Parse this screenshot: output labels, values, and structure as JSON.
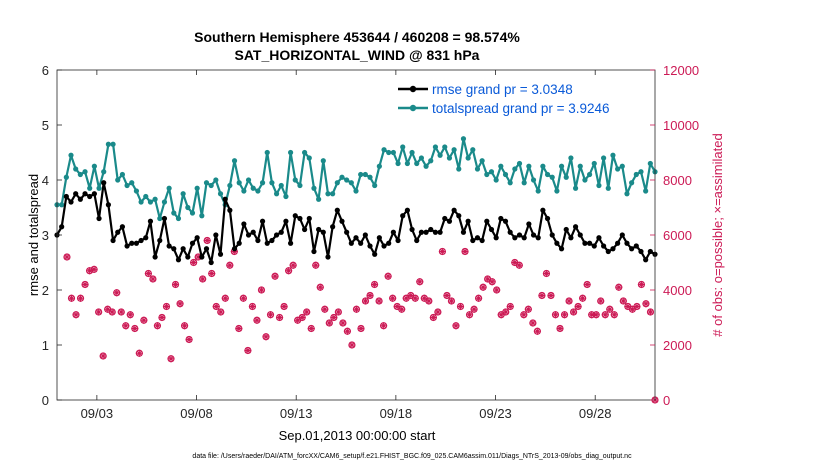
{
  "chart_data": {
    "type": "line",
    "title_line1": "Southern Hemisphere 453644 / 460208 = 98.574%",
    "title_line2": "SAT_HORIZONTAL_WIND @ 831 hPa",
    "xlabel": "Sep.01,2013 00:00:00 start",
    "ylabel_left": "rmse and totalspread",
    "ylabel_right": "# of obs: o=possible; ×=assimilated",
    "footer": "data file: /Users/raeder/DAI/ATM_forcXX/CAM6_setup/f.e21.FHIST_BGC.f09_025.CAM6assim.011/Diags_NTrS_2013-09/obs_diag_output.nc",
    "x_range_days": [
      0.5,
      30.5
    ],
    "ylim_left": [
      0,
      6
    ],
    "ylim_right": [
      0,
      12000
    ],
    "left_ticks": [
      0,
      1,
      2,
      3,
      4,
      5,
      6
    ],
    "left_tick_labels": [
      "0",
      "1",
      "2",
      "3",
      "4",
      "5",
      "6"
    ],
    "right_ticks": [
      0,
      2000,
      4000,
      6000,
      8000,
      10000,
      12000
    ],
    "right_tick_labels": [
      "0",
      "2000",
      "4000",
      "6000",
      "8000",
      "10000",
      "12000"
    ],
    "x_ticks_days": [
      2.5,
      7.5,
      12.5,
      17.5,
      22.5,
      27.5
    ],
    "x_tick_labels": [
      "09/03",
      "09/08",
      "09/13",
      "09/18",
      "09/23",
      "09/28"
    ],
    "legend_position": "top-right",
    "series": [
      {
        "name": "rmse grand pr = 3.0348",
        "color": "#000000",
        "axis": "left",
        "values": [
          3.0,
          3.15,
          3.7,
          3.6,
          3.75,
          3.65,
          3.75,
          3.7,
          3.75,
          3.3,
          3.95,
          3.55,
          2.9,
          3.05,
          3.15,
          2.8,
          2.85,
          2.85,
          2.9,
          2.95,
          3.25,
          2.6,
          2.9,
          3.3,
          2.8,
          2.75,
          2.55,
          2.75,
          2.6,
          2.85,
          2.95,
          2.6,
          2.75,
          2.5,
          3.0,
          2.65,
          3.65,
          3.45,
          2.75,
          2.85,
          3.2,
          3.0,
          3.05,
          2.9,
          3.25,
          2.85,
          2.9,
          3.0,
          3.05,
          3.25,
          2.85,
          3.35,
          3.3,
          3.1,
          3.3,
          2.7,
          3.1,
          3.05,
          2.6,
          3.15,
          3.45,
          3.25,
          3.05,
          2.85,
          2.95,
          2.85,
          3.0,
          2.8,
          2.65,
          2.95,
          2.8,
          2.85,
          3.05,
          2.9,
          3.35,
          3.45,
          3.1,
          2.9,
          3.05,
          3.05,
          3.1,
          3.05,
          3.05,
          3.3,
          3.25,
          3.45,
          3.35,
          3.05,
          3.25,
          2.9,
          2.95,
          2.9,
          3.25,
          3.1,
          2.95,
          3.3,
          3.25,
          3.05,
          2.95,
          3.0,
          2.95,
          3.2,
          3.0,
          2.95,
          3.45,
          3.3,
          3.0,
          2.85,
          2.75,
          3.1,
          2.95,
          3.15,
          3.0,
          2.85,
          2.85,
          2.8,
          2.95,
          2.8,
          2.7,
          2.75,
          2.85,
          3.0,
          2.85,
          2.75,
          2.8,
          2.7,
          2.55,
          2.7,
          2.65
        ],
        "marker": "dot"
      },
      {
        "name": "totalspread grand pr = 3.9246",
        "color": "#1a8a8a",
        "axis": "left",
        "values": [
          3.55,
          3.55,
          4.05,
          4.45,
          4.2,
          4.1,
          4.15,
          3.85,
          4.25,
          3.85,
          4.15,
          4.65,
          4.65,
          4.0,
          4.1,
          3.9,
          3.95,
          3.8,
          3.6,
          3.7,
          3.6,
          3.65,
          3.3,
          3.6,
          3.85,
          3.4,
          3.3,
          3.75,
          3.5,
          3.4,
          3.85,
          3.35,
          3.95,
          3.9,
          4.0,
          3.75,
          3.55,
          3.9,
          4.35,
          3.95,
          3.8,
          4.0,
          3.85,
          3.8,
          3.95,
          4.5,
          3.95,
          3.75,
          3.9,
          3.7,
          4.5,
          4.0,
          3.9,
          4.5,
          4.4,
          3.85,
          3.65,
          4.35,
          3.75,
          3.75,
          3.95,
          4.05,
          4.0,
          3.95,
          3.8,
          4.1,
          4.1,
          4.05,
          3.9,
          4.25,
          4.55,
          4.5,
          4.5,
          4.3,
          4.6,
          4.3,
          4.5,
          4.3,
          4.4,
          4.25,
          4.35,
          4.6,
          4.45,
          4.6,
          4.4,
          4.55,
          4.2,
          4.75,
          4.4,
          4.55,
          4.2,
          4.35,
          4.1,
          4.15,
          4.0,
          4.25,
          4.1,
          3.95,
          4.2,
          4.3,
          3.95,
          4.25,
          4.0,
          3.8,
          4.25,
          4.1,
          4.05,
          3.8,
          4.25,
          4.05,
          4.4,
          3.85,
          4.25,
          4.0,
          4.1,
          4.3,
          3.9,
          4.4,
          3.85,
          4.45,
          4.2,
          4.25,
          3.75,
          3.95,
          4.1,
          4.15,
          3.8,
          4.3,
          4.15
        ],
        "marker": "dot"
      },
      {
        "name": "possible obs",
        "color": "#cc1a55",
        "axis": "right",
        "marker": "circle-asterisk",
        "values": [
          5200,
          3700,
          3100,
          3700,
          4200,
          4700,
          4750,
          3200,
          1600,
          3300,
          3200,
          3900,
          3200,
          2700,
          3100,
          2600,
          1700,
          2900,
          4600,
          4400,
          2700,
          3000,
          3400,
          1500,
          4200,
          3500,
          2700,
          2200,
          5000,
          5200,
          4400,
          5800,
          4600,
          3400,
          3200,
          3700,
          4900,
          5400,
          2600,
          3700,
          1800,
          3400,
          2900,
          4000,
          2300,
          3100,
          4500,
          3000,
          3400,
          4700,
          4900,
          2900,
          3000,
          3200,
          2600,
          4900,
          4100,
          3300,
          2800,
          3000,
          3200,
          2800,
          2500,
          2000,
          3300,
          2600,
          3600,
          3800,
          4200,
          3600,
          2700,
          4500,
          3700,
          3400,
          3300,
          3700,
          3800,
          3700,
          4300,
          3700,
          3600,
          3000,
          3200,
          5400,
          3800,
          3600,
          2700,
          3400,
          5400,
          3100,
          3300,
          3700,
          4100,
          4400,
          4300,
          4000,
          3100,
          3200,
          3400,
          5000,
          4900,
          3100,
          3300,
          2800,
          2500,
          3800,
          4600,
          3800,
          3100,
          2600,
          3100,
          3600,
          3200,
          3400,
          3700,
          4200,
          3100,
          3100,
          3600,
          3100,
          3300,
          3100,
          4100,
          3600,
          3400,
          3300,
          3400,
          4200,
          3500,
          3200,
          0
        ]
      }
    ]
  }
}
